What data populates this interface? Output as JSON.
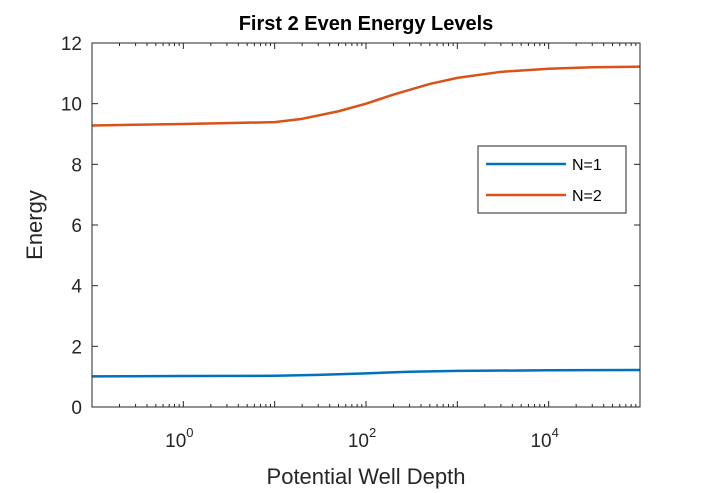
{
  "chart_data": {
    "type": "line",
    "title": "First 2 Even Energy Levels",
    "xlabel": "Potential Well Depth",
    "ylabel": "Energy",
    "xscale": "log",
    "xlim": [
      0.1,
      100000
    ],
    "ylim": [
      0,
      12
    ],
    "x_ticks": [
      {
        "value": 1,
        "base": "10",
        "exp": "0"
      },
      {
        "value": 100,
        "base": "10",
        "exp": "2"
      },
      {
        "value": 10000,
        "base": "10",
        "exp": "4"
      }
    ],
    "y_ticks": [
      "0",
      "2",
      "4",
      "6",
      "8",
      "10",
      "12"
    ],
    "grid": false,
    "legend_position": "right-middle",
    "series": [
      {
        "name": "N=1",
        "color": "#0072BD",
        "x": [
          0.1,
          1,
          10,
          30,
          100,
          300,
          1000,
          10000,
          100000
        ],
        "y": [
          1.01,
          1.02,
          1.03,
          1.06,
          1.11,
          1.16,
          1.19,
          1.21,
          1.22
        ]
      },
      {
        "name": "N=2",
        "color": "#D95319",
        "x": [
          0.1,
          1,
          10,
          20,
          50,
          100,
          200,
          500,
          1000,
          3000,
          10000,
          30000,
          100000
        ],
        "y": [
          9.28,
          9.33,
          9.39,
          9.5,
          9.75,
          10.0,
          10.3,
          10.65,
          10.85,
          11.05,
          11.15,
          11.2,
          11.22
        ]
      }
    ]
  }
}
